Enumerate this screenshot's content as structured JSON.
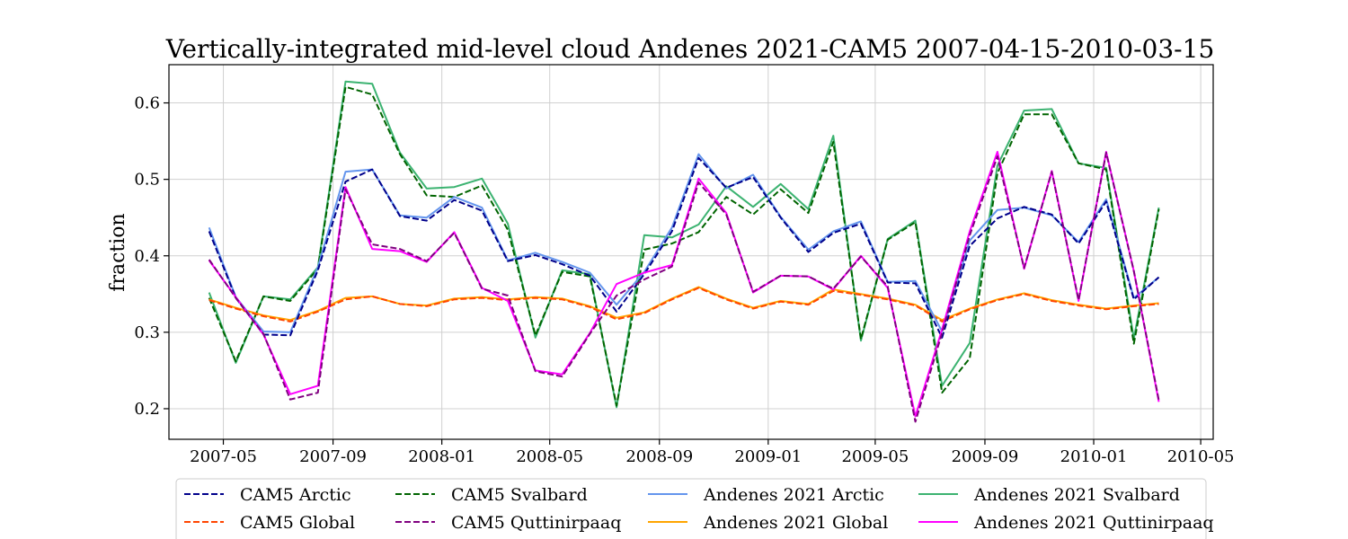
{
  "chart_data": {
    "type": "line",
    "title": "Vertically-integrated mid-level cloud Andenes 2021-CAM5 2007-04-15-2010-03-15",
    "xlabel": "",
    "ylabel": "fraction",
    "x": [
      "2007-04-15",
      "2007-05-15",
      "2007-06-15",
      "2007-07-15",
      "2007-08-15",
      "2007-09-15",
      "2007-10-15",
      "2007-11-15",
      "2007-12-15",
      "2008-01-15",
      "2008-02-15",
      "2008-03-15",
      "2008-04-15",
      "2008-05-15",
      "2008-06-15",
      "2008-07-15",
      "2008-08-15",
      "2008-09-15",
      "2008-10-15",
      "2008-11-15",
      "2008-12-15",
      "2009-01-15",
      "2009-02-15",
      "2009-03-15",
      "2009-04-15",
      "2009-05-15",
      "2009-06-15",
      "2009-07-15",
      "2009-08-15",
      "2009-09-15",
      "2009-10-15",
      "2009-11-15",
      "2009-12-15",
      "2010-01-15",
      "2010-02-15",
      "2010-03-15"
    ],
    "xlim": [
      "2007-03-01",
      "2010-05-15"
    ],
    "ylim": [
      0.16,
      0.65
    ],
    "xticks": [
      {
        "value": "2007-05-01",
        "label": "2007-05"
      },
      {
        "value": "2007-09-01",
        "label": "2007-09"
      },
      {
        "value": "2008-01-01",
        "label": "2008-01"
      },
      {
        "value": "2008-05-01",
        "label": "2008-05"
      },
      {
        "value": "2008-09-01",
        "label": "2008-09"
      },
      {
        "value": "2009-01-01",
        "label": "2009-01"
      },
      {
        "value": "2009-05-01",
        "label": "2009-05"
      },
      {
        "value": "2009-09-01",
        "label": "2009-09"
      },
      {
        "value": "2010-01-01",
        "label": "2010-01"
      },
      {
        "value": "2010-05-01",
        "label": "2010-05"
      }
    ],
    "yticks": [
      {
        "value": 0.2,
        "label": "0.2"
      },
      {
        "value": 0.3,
        "label": "0.3"
      },
      {
        "value": 0.4,
        "label": "0.4"
      },
      {
        "value": 0.5,
        "label": "0.5"
      },
      {
        "value": 0.6,
        "label": "0.6"
      }
    ],
    "grid": true,
    "legend_position": "bottom",
    "series": [
      {
        "name": "CAM5 Arctic",
        "color": "#00008b",
        "dash": "dashed",
        "values": [
          0.432,
          0.345,
          0.297,
          0.296,
          0.381,
          0.497,
          0.513,
          0.452,
          0.446,
          0.473,
          0.459,
          0.393,
          0.401,
          0.389,
          0.374,
          0.327,
          0.376,
          0.432,
          0.528,
          0.489,
          0.503,
          0.45,
          0.405,
          0.43,
          0.442,
          0.365,
          0.364,
          0.293,
          0.413,
          0.449,
          0.464,
          0.454,
          0.416,
          0.471,
          0.343,
          0.372
        ]
      },
      {
        "name": "CAM5 Global",
        "color": "#ff4500",
        "dash": "dashed",
        "values": [
          0.342,
          0.331,
          0.321,
          0.314,
          0.327,
          0.343,
          0.347,
          0.337,
          0.334,
          0.343,
          0.345,
          0.342,
          0.345,
          0.343,
          0.333,
          0.317,
          0.325,
          0.343,
          0.358,
          0.343,
          0.331,
          0.34,
          0.336,
          0.354,
          0.349,
          0.343,
          0.335,
          0.314,
          0.33,
          0.342,
          0.35,
          0.341,
          0.335,
          0.33,
          0.334,
          0.337
        ]
      },
      {
        "name": "CAM5 Svalbard",
        "color": "#006400",
        "dash": "dashed",
        "values": [
          0.345,
          0.262,
          0.347,
          0.341,
          0.383,
          0.621,
          0.611,
          0.533,
          0.479,
          0.477,
          0.492,
          0.434,
          0.296,
          0.379,
          0.373,
          0.204,
          0.408,
          0.416,
          0.431,
          0.477,
          0.454,
          0.487,
          0.456,
          0.549,
          0.291,
          0.421,
          0.444,
          0.221,
          0.266,
          0.508,
          0.585,
          0.585,
          0.521,
          0.513,
          0.285,
          0.461
        ]
      },
      {
        "name": "CAM5 Quttinirpaaq",
        "color": "#800080",
        "dash": "dashed",
        "values": [
          0.395,
          0.345,
          0.298,
          0.212,
          0.221,
          0.487,
          0.415,
          0.409,
          0.393,
          0.43,
          0.357,
          0.348,
          0.249,
          0.242,
          0.298,
          0.348,
          0.369,
          0.386,
          0.496,
          0.454,
          0.353,
          0.374,
          0.373,
          0.357,
          0.399,
          0.36,
          0.183,
          0.299,
          0.427,
          0.53,
          0.384,
          0.51,
          0.342,
          0.535,
          0.38,
          0.211
        ]
      },
      {
        "name": "Andenes 2021 Arctic",
        "color": "#6495ed",
        "dash": "solid",
        "values": [
          0.437,
          0.346,
          0.301,
          0.3,
          0.385,
          0.51,
          0.513,
          0.453,
          0.45,
          0.477,
          0.463,
          0.394,
          0.404,
          0.392,
          0.378,
          0.336,
          0.379,
          0.437,
          0.533,
          0.488,
          0.506,
          0.451,
          0.408,
          0.432,
          0.445,
          0.366,
          0.367,
          0.301,
          0.42,
          0.46,
          0.463,
          0.453,
          0.418,
          0.474,
          0.345,
          0.372
        ]
      },
      {
        "name": "Andenes 2021 Global",
        "color": "#ffa500",
        "dash": "solid",
        "values": [
          0.343,
          0.332,
          0.322,
          0.316,
          0.328,
          0.345,
          0.347,
          0.337,
          0.335,
          0.344,
          0.346,
          0.343,
          0.346,
          0.344,
          0.334,
          0.319,
          0.326,
          0.344,
          0.359,
          0.344,
          0.332,
          0.341,
          0.337,
          0.356,
          0.35,
          0.344,
          0.336,
          0.316,
          0.331,
          0.343,
          0.351,
          0.342,
          0.336,
          0.331,
          0.335,
          0.338
        ]
      },
      {
        "name": "Andenes 2021 Svalbard",
        "color": "#3cb371",
        "dash": "solid",
        "values": [
          0.352,
          0.26,
          0.347,
          0.343,
          0.385,
          0.628,
          0.625,
          0.535,
          0.488,
          0.49,
          0.501,
          0.442,
          0.293,
          0.381,
          0.376,
          0.202,
          0.427,
          0.424,
          0.441,
          0.491,
          0.464,
          0.494,
          0.461,
          0.557,
          0.289,
          0.422,
          0.446,
          0.23,
          0.286,
          0.518,
          0.59,
          0.592,
          0.521,
          0.515,
          0.292,
          0.463
        ]
      },
      {
        "name": "Andenes 2021 Quttinirpaaq",
        "color": "#ff00ff",
        "dash": "solid",
        "values": [
          0.394,
          0.346,
          0.297,
          0.219,
          0.23,
          0.49,
          0.409,
          0.406,
          0.392,
          0.431,
          0.358,
          0.341,
          0.25,
          0.245,
          0.299,
          0.363,
          0.378,
          0.388,
          0.501,
          0.456,
          0.352,
          0.374,
          0.373,
          0.356,
          0.4,
          0.358,
          0.19,
          0.304,
          0.432,
          0.536,
          0.383,
          0.511,
          0.341,
          0.536,
          0.38,
          0.209
        ]
      }
    ]
  }
}
